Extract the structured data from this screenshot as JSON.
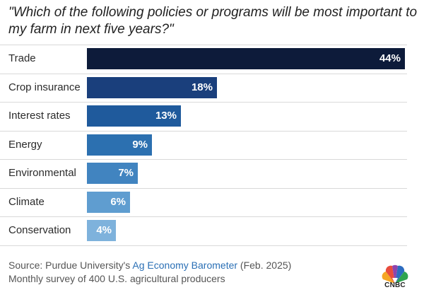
{
  "chart_data": {
    "type": "bar",
    "orientation": "horizontal",
    "title": "\"Which of the following policies or programs will be most important to my farm in next five years?\"",
    "categories": [
      "Trade",
      "Crop insurance",
      "Interest rates",
      "Energy",
      "Environmental",
      "Climate",
      "Conservation"
    ],
    "values": [
      44,
      18,
      13,
      9,
      7,
      6,
      4
    ],
    "value_labels": [
      "44%",
      "18%",
      "13%",
      "9%",
      "7%",
      "6%",
      "4%"
    ],
    "colors": [
      "#0d1b3a",
      "#1a3f7c",
      "#1f5a9c",
      "#2c70b0",
      "#4184c0",
      "#5f9dd0",
      "#7eb2dc"
    ],
    "xlim": [
      0,
      44
    ],
    "grid": false,
    "legend": "none"
  },
  "source": {
    "prefix": "Source: Purdue University's ",
    "link_text": "Ag Economy Barometer",
    "suffix": " (Feb. 2025)",
    "note": "Monthly survey of 400 U.S. agricultural producers"
  },
  "logo": {
    "text": "CNBC",
    "icon": "nbc-peacock-icon"
  }
}
